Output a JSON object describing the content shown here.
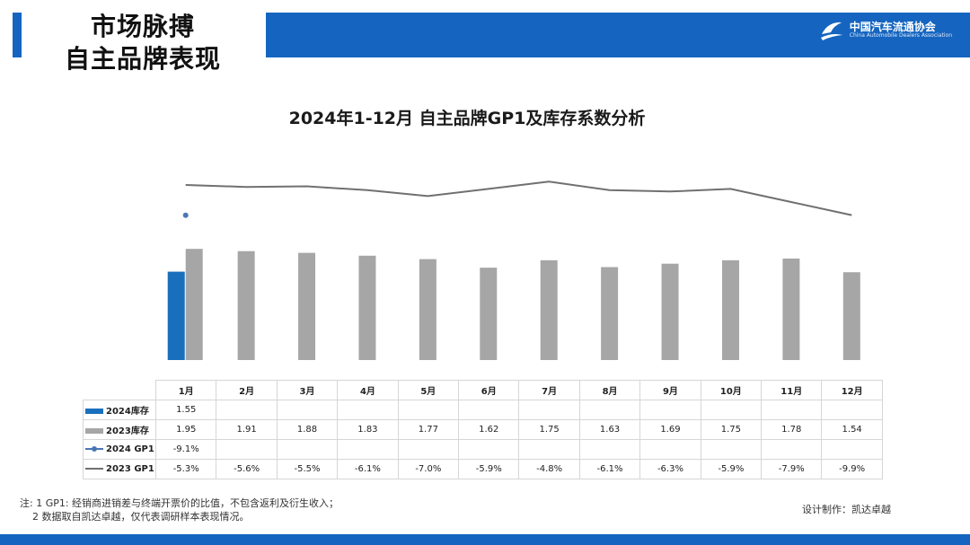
{
  "header": {
    "title_line1": "市场脉搏",
    "title_line2": "自主品牌表现",
    "logo_cn": "中国汽车流通协会",
    "logo_en": "China Automobile Dealers Association",
    "brand_color": "#1565c0"
  },
  "chart_data": {
    "type": "bar",
    "title": "2024年1-12月 自主品牌GP1及库存系数分析",
    "categories": [
      "1月",
      "2月",
      "3月",
      "4月",
      "5月",
      "6月",
      "7月",
      "8月",
      "9月",
      "10月",
      "11月",
      "12月"
    ],
    "series": [
      {
        "name": "2024库存",
        "kind": "bar",
        "color": "#1a6fbd",
        "values": [
          1.55,
          null,
          null,
          null,
          null,
          null,
          null,
          null,
          null,
          null,
          null,
          null
        ],
        "labels": [
          "1.55",
          "",
          "",
          "",
          "",
          "",
          "",
          "",
          "",
          "",
          "",
          ""
        ]
      },
      {
        "name": "2023库存",
        "kind": "bar",
        "color": "#a6a6a6",
        "values": [
          1.95,
          1.91,
          1.88,
          1.83,
          1.77,
          1.62,
          1.75,
          1.63,
          1.69,
          1.75,
          1.78,
          1.54
        ],
        "labels": [
          "1.95",
          "1.91",
          "1.88",
          "1.83",
          "1.77",
          "1.62",
          "1.75",
          "1.63",
          "1.69",
          "1.75",
          "1.78",
          "1.54"
        ]
      },
      {
        "name": "2024 GP1",
        "kind": "line",
        "color": "#4a76b5",
        "values": [
          -9.1,
          null,
          null,
          null,
          null,
          null,
          null,
          null,
          null,
          null,
          null,
          null
        ],
        "labels": [
          "-9.1%",
          "",
          "",
          "",
          "",
          "",
          "",
          "",
          "",
          "",
          "",
          ""
        ]
      },
      {
        "name": "2023 GP1",
        "kind": "line",
        "color": "#707070",
        "values": [
          -5.3,
          -5.6,
          -5.5,
          -6.1,
          -7.0,
          -5.9,
          -4.8,
          -6.1,
          -6.3,
          -5.9,
          -7.9,
          -9.9
        ],
        "labels": [
          "-5.3%",
          "-5.6%",
          "-5.5%",
          "-6.1%",
          "-7.0%",
          "-5.9%",
          "-4.8%",
          "-6.1%",
          "-6.3%",
          "-5.9%",
          "-7.9%",
          "-9.9%"
        ]
      }
    ],
    "legend": "table-left"
  },
  "notes": {
    "line1": "注: 1  GP1: 经销商进销差与终端开票价的比值，不包含返利及衍生收入；",
    "line2": "2 数据取自凯达卓越，仅代表调研样本表现情况。"
  },
  "credit": "设计制作：凯达卓越"
}
